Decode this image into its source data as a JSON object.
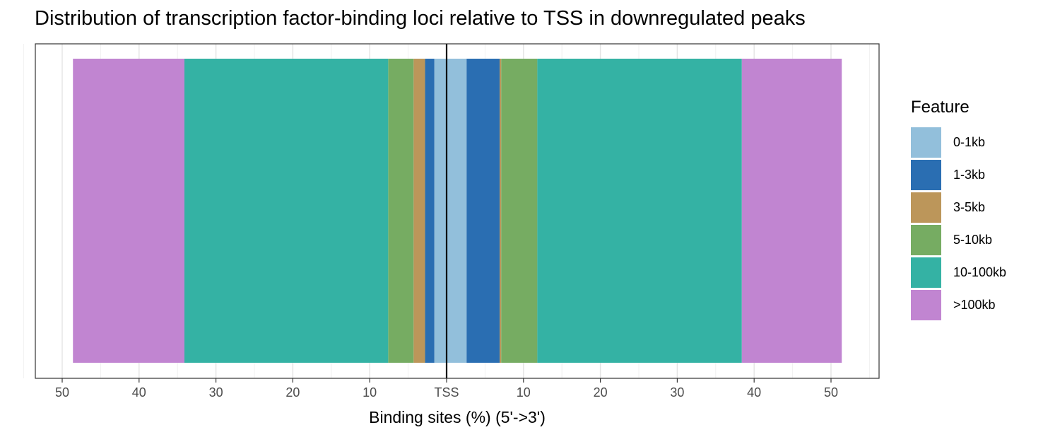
{
  "chart_data": {
    "type": "bar",
    "orientation": "horizontal-stacked-diverging",
    "title": "Distribution of transcription factor-binding loci relative to TSS in downregulated peaks",
    "xlabel": "Binding sites (%) (5'->3')",
    "ylabel": "",
    "xlim": [
      -55,
      55
    ],
    "x_ticks": [
      -50,
      -40,
      -30,
      -20,
      -10,
      0,
      10,
      20,
      30,
      40,
      50
    ],
    "x_tick_labels": [
      "50",
      "40",
      "30",
      "20",
      "10",
      "TSS",
      "10",
      "20",
      "30",
      "40",
      "50"
    ],
    "grid": true,
    "legend_position": "right",
    "legend_title": "Feature",
    "reference_line": "TSS",
    "series": [
      {
        "name": "0-1kb",
        "color": "#92BFDB",
        "upstream": 1.6,
        "downstream": 2.6
      },
      {
        "name": "1-3kb",
        "color": "#2A6EB2",
        "upstream": 1.2,
        "downstream": 4.3
      },
      {
        "name": "3-5kb",
        "color": "#BC965A",
        "upstream": 1.5,
        "downstream": 0.2
      },
      {
        "name": "5-10kb",
        "color": "#76AC62",
        "upstream": 3.3,
        "downstream": 4.7
      },
      {
        "name": "10-100kb",
        "color": "#34B2A4",
        "upstream": 26.5,
        "downstream": 26.6
      },
      {
        "name": ">100kb",
        "color": "#C185D1",
        "upstream": 14.5,
        "downstream": 13.0
      }
    ]
  }
}
